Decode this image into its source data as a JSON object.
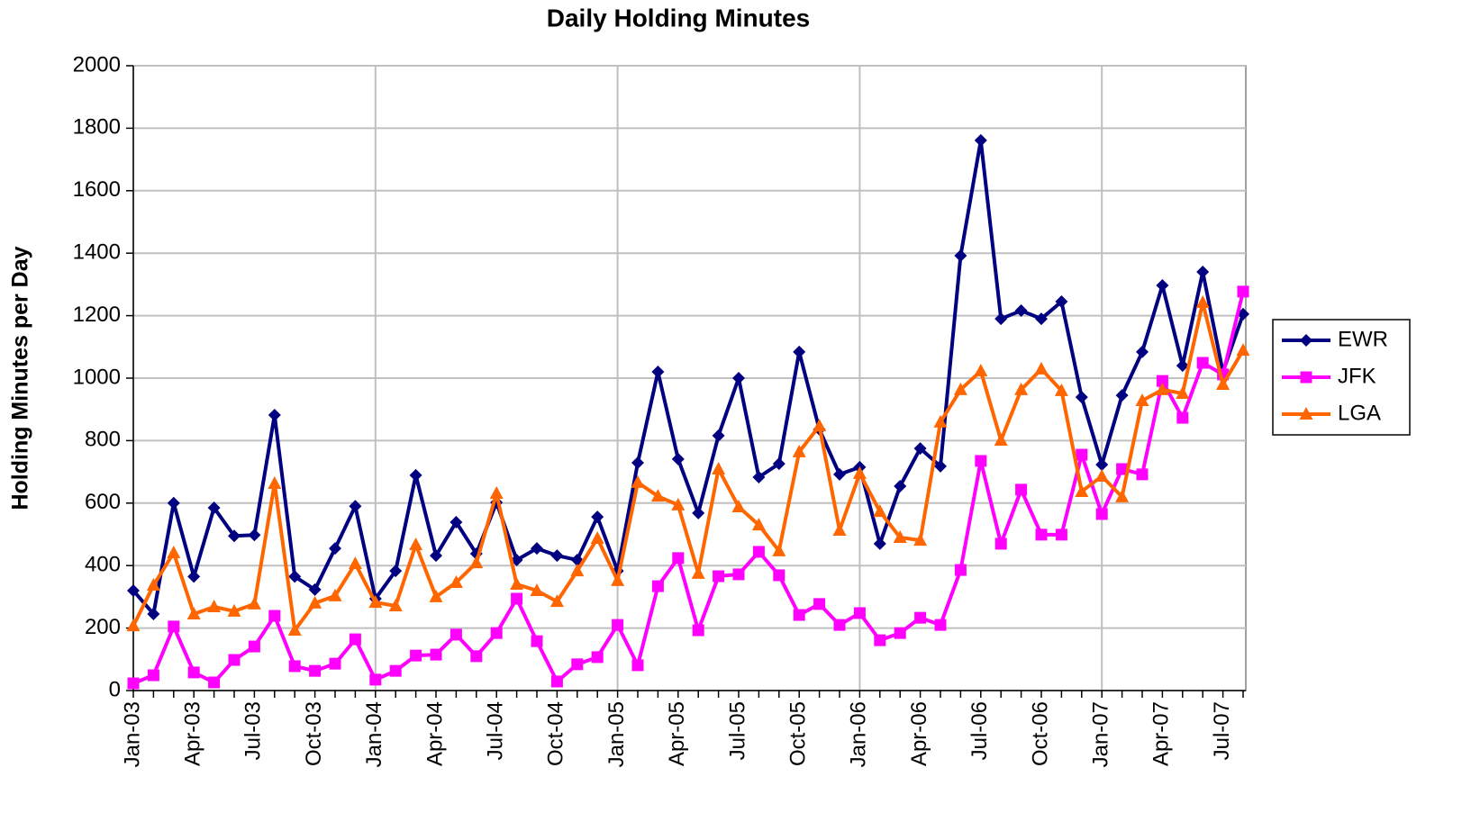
{
  "chart_data": {
    "type": "line",
    "title": "Daily Holding Minutes",
    "y_label": "Holding Minutes per Day",
    "categories": [
      "Jan-03",
      null,
      null,
      "Apr-03",
      null,
      null,
      "Jul-03",
      null,
      null,
      "Oct-03",
      null,
      null,
      "Jan-04",
      null,
      null,
      "Apr-04",
      null,
      null,
      "Jul-04",
      null,
      null,
      "Oct-04",
      null,
      null,
      "Jan-05",
      null,
      null,
      "Apr-05",
      null,
      null,
      "Jul-05",
      null,
      null,
      "Oct-05",
      null,
      null,
      "Jan-06",
      null,
      null,
      "Apr-06",
      null,
      null,
      "Jul-06",
      null,
      null,
      "Oct-06",
      null,
      null,
      "Jan-07",
      null,
      null,
      "Apr-07",
      null,
      null,
      "Jul-07",
      null
    ],
    "series": [
      {
        "name": "EWR",
        "color": "#000080",
        "marker": "diamond",
        "values": [
          320,
          245,
          600,
          365,
          585,
          495,
          498,
          882,
          365,
          323,
          455,
          590,
          294,
          383,
          689,
          432,
          539,
          438,
          602,
          418,
          455,
          432,
          418,
          556,
          383,
          729,
          1020,
          741,
          568,
          816,
          1000,
          683,
          726,
          1084,
          836,
          692,
          715,
          470,
          654,
          775,
          718,
          1392,
          1761,
          1190,
          1216,
          1190,
          1245,
          939,
          723,
          945,
          1084,
          1297,
          1040,
          1340,
          1020,
          1205
        ]
      },
      {
        "name": "JFK",
        "color": "#FF00FF",
        "marker": "square",
        "values": [
          23,
          49,
          205,
          58,
          26,
          98,
          141,
          239,
          78,
          63,
          86,
          164,
          35,
          63,
          112,
          115,
          179,
          110,
          184,
          294,
          158,
          29,
          84,
          107,
          210,
          81,
          334,
          424,
          193,
          366,
          372,
          444,
          369,
          242,
          277,
          210,
          248,
          161,
          184,
          233,
          210,
          386,
          735,
          470,
          643,
          499,
          499,
          755,
          565,
          709,
          692,
          991,
          873,
          1049,
          1012,
          1277
        ]
      },
      {
        "name": "LGA",
        "color": "#FF6600",
        "marker": "triangle",
        "values": [
          207,
          337,
          441,
          245,
          268,
          254,
          277,
          663,
          193,
          280,
          303,
          406,
          282,
          271,
          467,
          300,
          346,
          409,
          631,
          340,
          320,
          285,
          383,
          487,
          352,
          666,
          622,
          594,
          375,
          709,
          588,
          530,
          447,
          764,
          847,
          513,
          695,
          573,
          490,
          481,
          859,
          963,
          1023,
          801,
          963,
          1029,
          960,
          637,
          686,
          620,
          928,
          963,
          951,
          1242,
          980,
          1089
        ]
      }
    ],
    "ylim": [
      0,
      2000
    ],
    "yticks": [
      0,
      200,
      400,
      600,
      800,
      1000,
      1200,
      1400,
      1600,
      1800,
      2000
    ],
    "grid": true,
    "legend": "right"
  }
}
